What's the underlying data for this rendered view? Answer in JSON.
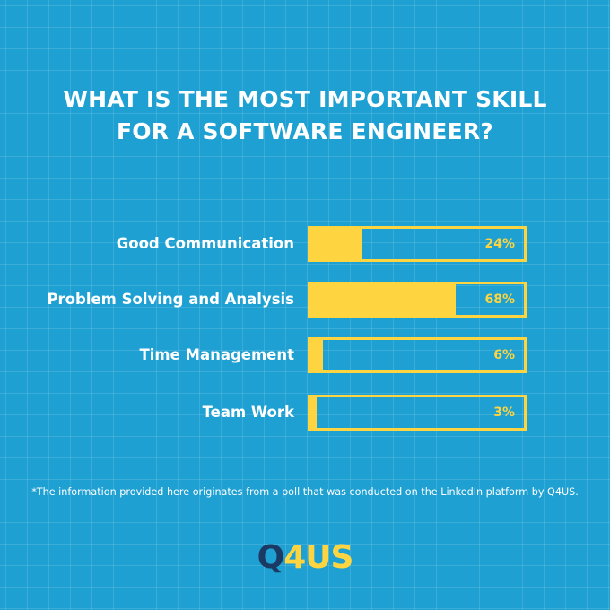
{
  "chart_data": {
    "type": "bar",
    "orientation": "horizontal",
    "title_lines": [
      "WHAT IS THE MOST IMPORTANT SKILL",
      "FOR A SOFTWARE ENGINEER?"
    ],
    "categories": [
      "Good Communication",
      "Problem Solving and Analysis",
      "Time Management",
      "Team Work"
    ],
    "values": [
      24,
      68,
      6,
      3
    ],
    "value_labels": [
      "24%",
      "68%",
      "6%",
      "3%"
    ],
    "xlim": [
      0,
      100
    ],
    "grid": false,
    "bar_color": "#fed540"
  },
  "footnote": "*The information provided here originates from a poll that was conducted on the LinkedIn platform by Q4US.",
  "logo": {
    "part1": "Q",
    "part2": "4US"
  },
  "colors": {
    "background": "#1ea0d2",
    "accent": "#fed540",
    "logo_dark": "#1b3a63",
    "text": "#ffffff"
  }
}
